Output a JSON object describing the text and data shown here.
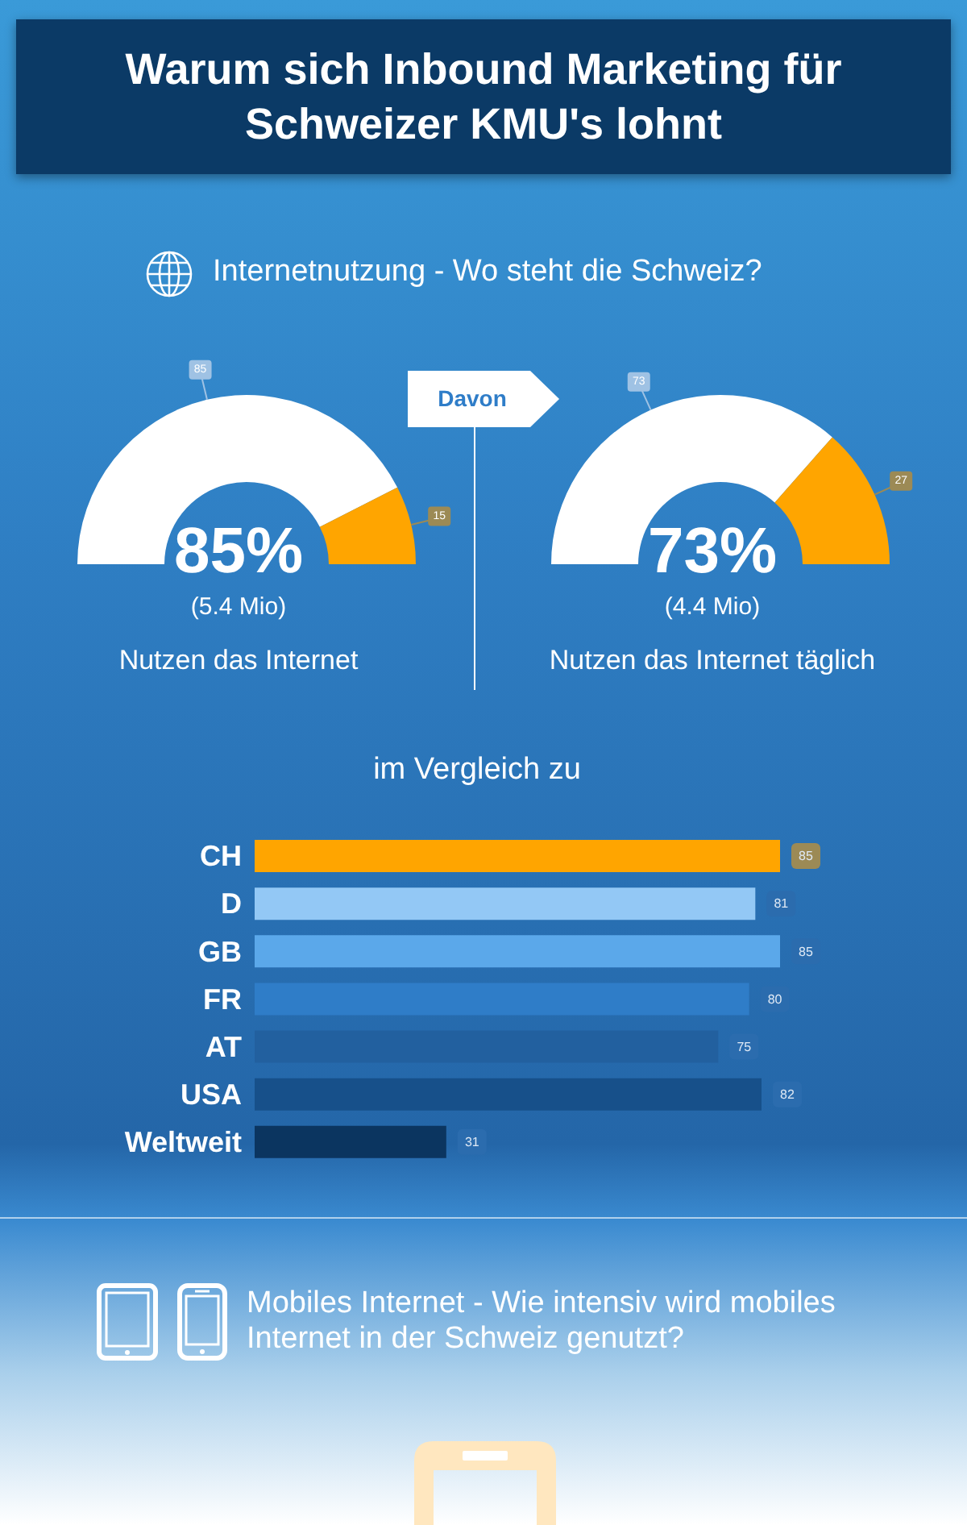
{
  "chart_data": [
    {
      "type": "other",
      "title": "Warum sich Inbound Marketing für Schweizer KMU's lohnt",
      "subtitle": "Internetnutzung - Wo steht die Schweiz?"
    },
    {
      "type": "donut",
      "categories": [
        null,
        null
      ],
      "values": [
        85,
        15
      ],
      "colors": [
        "#ffffff",
        "#ffa500"
      ],
      "data_labels": true,
      "annotations": [
        "85%",
        "(5.4 Mio)",
        "Nutzen das Internet"
      ]
    },
    {
      "type": "donut",
      "categories": [
        null,
        null
      ],
      "values": [
        73,
        27
      ],
      "colors": [
        "#ffffff",
        "#ffa500"
      ],
      "data_labels": true,
      "annotations": [
        "73%",
        "(4.4 Mio)",
        "Nutzen das Internet täglich",
        "Davon"
      ]
    },
    {
      "type": "bar",
      "orientation": "horizontal",
      "title": "im Vergleich zu",
      "categories": [
        "CH",
        "D",
        "GB",
        "FR",
        "AT",
        "USA",
        "Weltweit"
      ],
      "values": [
        85,
        81,
        85,
        80,
        75,
        82,
        31
      ],
      "colors": [
        "#ffa500",
        "#93c8f5",
        "#5ba8ea",
        "#2f7dc8",
        "#22609f",
        "#17508a",
        "#0b3560"
      ],
      "data_labels": true
    },
    {
      "type": "other",
      "title": "Mobiles Internet - Wie intensiv wird mobiles Internet in der Schweiz genutzt?"
    }
  ]
}
